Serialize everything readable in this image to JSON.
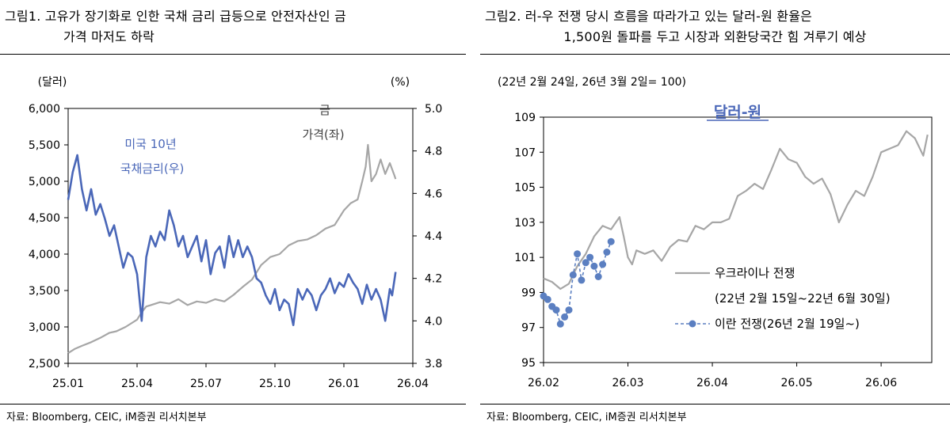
{
  "chart_data": [
    {
      "type": "line",
      "title": "그림1. 고유가 장기화로 인한 국채 금리 급등으로 안전자산인 금 가격 마저도 하락",
      "title_line1": "그림1.  고유가 장기화로 인한 국채 금리 급등으로 안전자산인 금",
      "title_line2": "가격 마저도 하락",
      "left_axis_unit": "(달러)",
      "right_axis_unit": "(%)",
      "x_tick_labels": [
        "25.01",
        "25.04",
        "25.07",
        "25.10",
        "26.01",
        "26.04"
      ],
      "x_range": [
        0,
        15
      ],
      "y_left": {
        "min": 2500,
        "max": 6000,
        "ticks": [
          2500,
          3000,
          3500,
          4000,
          4500,
          5000,
          5500,
          6000
        ],
        "tick_labels": [
          "2,500",
          "3,000",
          "3,500",
          "4,000",
          "4,500",
          "5,000",
          "5,500",
          "6,000"
        ]
      },
      "y_right": {
        "min": 3.8,
        "max": 5.0,
        "ticks": [
          3.8,
          4.0,
          4.2,
          4.4,
          4.6,
          4.8,
          5.0
        ],
        "tick_labels": [
          "3.8",
          "4.0",
          "4.2",
          "4.4",
          "4.6",
          "4.8",
          "5.0"
        ]
      },
      "series": [
        {
          "name": "금 가격(좌)",
          "label_lines": [
            "금",
            "가격(좌)"
          ],
          "axis": "left",
          "color": "#a6a6a6",
          "x": [
            0,
            0.3,
            0.6,
            1,
            1.4,
            1.8,
            2.1,
            2.5,
            2.8,
            3.0,
            3.2,
            3.4,
            3.6,
            4.0,
            4.4,
            4.8,
            5.2,
            5.6,
            6.0,
            6.4,
            6.8,
            7.2,
            7.6,
            8.0,
            8.4,
            8.8,
            9.2,
            9.6,
            10.0,
            10.4,
            10.8,
            11.2,
            11.6,
            12.0,
            12.3,
            12.6,
            12.8,
            12.95,
            13.05,
            13.2,
            13.4,
            13.6,
            13.8,
            14.0,
            14.2,
            14.25
          ],
          "values": [
            2640,
            2700,
            2740,
            2790,
            2850,
            2920,
            2940,
            3000,
            3060,
            3100,
            3200,
            3280,
            3300,
            3340,
            3320,
            3380,
            3300,
            3350,
            3330,
            3380,
            3350,
            3440,
            3550,
            3650,
            3850,
            3960,
            4000,
            4120,
            4180,
            4200,
            4260,
            4350,
            4400,
            4600,
            4700,
            4750,
            5000,
            5200,
            5500,
            5000,
            5100,
            5300,
            5100,
            5250,
            5080,
            5030
          ]
        },
        {
          "name": "미국 10년 국채금리(우)",
          "label_lines": [
            "미국 10년",
            "국채금리(우)"
          ],
          "axis": "right",
          "color": "#4a67b8",
          "x": [
            0,
            0.2,
            0.4,
            0.6,
            0.8,
            1.0,
            1.2,
            1.4,
            1.6,
            1.8,
            2.0,
            2.2,
            2.4,
            2.6,
            2.8,
            3.0,
            3.2,
            3.4,
            3.6,
            3.8,
            4.0,
            4.2,
            4.4,
            4.6,
            4.8,
            5.0,
            5.2,
            5.4,
            5.6,
            5.8,
            6.0,
            6.2,
            6.4,
            6.6,
            6.8,
            7.0,
            7.2,
            7.4,
            7.6,
            7.8,
            8.0,
            8.2,
            8.4,
            8.6,
            8.8,
            9.0,
            9.2,
            9.4,
            9.6,
            9.8,
            10.0,
            10.2,
            10.4,
            10.6,
            10.8,
            11.0,
            11.2,
            11.4,
            11.6,
            11.8,
            12.0,
            12.2,
            12.4,
            12.6,
            12.8,
            13.0,
            13.2,
            13.4,
            13.6,
            13.8,
            14.0,
            14.1,
            14.25
          ],
          "values": [
            4.57,
            4.7,
            4.78,
            4.62,
            4.52,
            4.62,
            4.5,
            4.55,
            4.48,
            4.4,
            4.45,
            4.35,
            4.25,
            4.32,
            4.3,
            4.22,
            4.0,
            4.3,
            4.4,
            4.35,
            4.42,
            4.38,
            4.52,
            4.45,
            4.35,
            4.4,
            4.3,
            4.35,
            4.4,
            4.28,
            4.38,
            4.22,
            4.32,
            4.35,
            4.25,
            4.4,
            4.3,
            4.38,
            4.3,
            4.35,
            4.3,
            4.2,
            4.18,
            4.12,
            4.08,
            4.15,
            4.05,
            4.1,
            4.08,
            3.98,
            4.15,
            4.1,
            4.15,
            4.12,
            4.05,
            4.12,
            4.15,
            4.2,
            4.13,
            4.18,
            4.16,
            4.22,
            4.18,
            4.15,
            4.08,
            4.17,
            4.1,
            4.15,
            4.1,
            4.0,
            4.15,
            4.12,
            4.23
          ]
        }
      ],
      "source": "자료: Bloomberg, CEIC, iM증권 리서치본부"
    },
    {
      "type": "line",
      "title": "그림2. 러-우 전쟁 당시 흐름을 따라가고 있는 달러-원 환율은 1,500원 돌파를 두고 시장과 외환당국간 힘 겨루기 예상",
      "title_line1": "그림2.  러-우 전쟁 당시 흐름을 따라가고 있는 달러-원 환율은",
      "title_line2": "1,500원 돌파를 두고 시장과 외환당국간 힘 겨루기 예상",
      "subtitle": "(22년 2월 24일, 26년 3월 2일= 100)",
      "inner_title": "달러-원",
      "x_tick_labels": [
        "26.02",
        "26.03",
        "26.04",
        "26.05",
        "26.06"
      ],
      "x_range": [
        0,
        4.6
      ],
      "y": {
        "min": 95,
        "max": 109,
        "ticks": [
          95,
          97,
          99,
          101,
          103,
          105,
          107,
          109
        ],
        "tick_labels": [
          "95",
          "97",
          "99",
          "101",
          "103",
          "105",
          "107",
          "109"
        ]
      },
      "series": [
        {
          "name": "우크라이나 전쟁",
          "legend_line1": "우크라이나 전쟁",
          "legend_line2": "(22년 2월 15일~22년 6월 30일)",
          "color": "#a6a6a6",
          "x": [
            0,
            0.1,
            0.2,
            0.3,
            0.4,
            0.5,
            0.6,
            0.7,
            0.8,
            0.9,
            0.95,
            1.0,
            1.05,
            1.1,
            1.2,
            1.3,
            1.4,
            1.5,
            1.6,
            1.7,
            1.8,
            1.9,
            2.0,
            2.1,
            2.2,
            2.3,
            2.4,
            2.5,
            2.6,
            2.7,
            2.8,
            2.9,
            3.0,
            3.1,
            3.2,
            3.3,
            3.4,
            3.5,
            3.6,
            3.7,
            3.8,
            3.9,
            4.0,
            4.1,
            4.2,
            4.3,
            4.4,
            4.5,
            4.55
          ],
          "values": [
            99.8,
            99.6,
            99.2,
            99.5,
            100.5,
            101.2,
            102.2,
            102.8,
            102.6,
            103.3,
            102.2,
            101.0,
            100.6,
            101.4,
            101.2,
            101.4,
            100.8,
            101.6,
            102.0,
            101.9,
            102.8,
            102.6,
            103.0,
            103.0,
            103.2,
            104.5,
            104.8,
            105.2,
            104.9,
            106.0,
            107.2,
            106.6,
            106.4,
            105.6,
            105.2,
            105.5,
            104.6,
            103.0,
            104.0,
            104.8,
            104.5,
            105.6,
            107.0,
            107.2,
            107.4,
            108.2,
            107.8,
            106.8,
            108.0
          ]
        },
        {
          "name": "이란 전쟁",
          "legend_line1": "이란 전쟁(26년 2월 19일~)",
          "color": "#5b7fc1",
          "x": [
            0,
            0.05,
            0.1,
            0.15,
            0.2,
            0.25,
            0.3,
            0.35,
            0.4,
            0.45,
            0.5,
            0.55,
            0.6,
            0.65,
            0.7,
            0.75,
            0.8
          ],
          "values": [
            98.8,
            98.6,
            98.2,
            98.0,
            97.2,
            97.6,
            98.0,
            100.0,
            101.2,
            99.7,
            100.7,
            101.0,
            100.5,
            99.9,
            100.6,
            101.3,
            101.9
          ]
        }
      ],
      "source": "자료: Bloomberg, CEIC, iM증권 리서치본부"
    }
  ]
}
